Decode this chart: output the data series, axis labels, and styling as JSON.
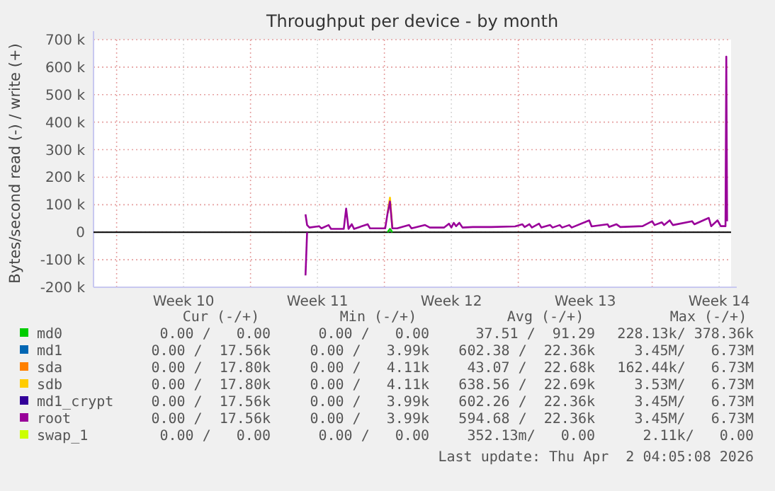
{
  "chart_data": {
    "type": "line",
    "title": "Throughput per device - by month",
    "ylabel": "Bytes/second read (-) / write (+)",
    "xlim": [
      "2026-02-28T01:00",
      "2026-04-02T09:00"
    ],
    "xticks": [
      {
        "value": "2026-03-01T06:00",
        "label": null
      },
      {
        "value": "2026-03-04T18:00",
        "label": "Week 10"
      },
      {
        "value": "2026-03-08T06:00",
        "label": null
      },
      {
        "value": "2026-03-11T18:00",
        "label": "Week 11"
      },
      {
        "value": "2026-03-15T06:00",
        "label": null
      },
      {
        "value": "2026-03-18T18:00",
        "label": "Week 12"
      },
      {
        "value": "2026-03-22T06:00",
        "label": null
      },
      {
        "value": "2026-03-25T18:00",
        "label": "Week 13"
      },
      {
        "value": "2026-03-29T06:00",
        "label": null
      },
      {
        "value": "2026-04-01T18:00",
        "label": "Week 14"
      }
    ],
    "ylim": [
      -200000,
      700000
    ],
    "yticks": [
      {
        "value": -200000,
        "label": "-200 k"
      },
      {
        "value": -100000,
        "label": "-100 k"
      },
      0,
      {
        "value": 100000,
        "label": "100 k"
      },
      {
        "value": 200000,
        "label": "200 k"
      },
      {
        "value": 300000,
        "label": "300 k"
      },
      {
        "value": 400000,
        "label": "400 k"
      },
      {
        "value": 500000,
        "label": "500 k"
      },
      {
        "value": 600000,
        "label": "600 k"
      },
      {
        "value": 700000,
        "label": "700 k"
      }
    ],
    "grid": true,
    "legend": "bottom",
    "ref_lines": [
      {
        "axis": "y",
        "value": 0,
        "color": "#000000"
      }
    ],
    "series": [
      {
        "name": "md0",
        "color": "#00cc00",
        "x": [
          "2026-03-15T10:00",
          "2026-03-15T13:00",
          "2026-03-15T16:00"
        ],
        "values": [
          0,
          12000,
          0
        ]
      },
      {
        "name": "md1",
        "color": "#0066b3"
      },
      {
        "name": "sda",
        "color": "#ff8000"
      },
      {
        "name": "sdb",
        "color": "#ffcc00",
        "x": [
          "2026-03-15T10:00",
          "2026-03-15T13:00",
          "2026-03-15T16:00"
        ],
        "values": [
          69000,
          126000,
          14000
        ]
      },
      {
        "name": "md1_crypt",
        "color": "#330099"
      },
      {
        "name": "root",
        "color": "#990099",
        "x": [
          "2026-03-11T03:00",
          "2026-03-11T05:00",
          "2026-03-11T08:00",
          "2026-03-11T20:00",
          "2026-03-11T23:00",
          "2026-03-12T08:00",
          "2026-03-12T11:00",
          "2026-03-13T03:00",
          "2026-03-13T06:00",
          "2026-03-13T09:00",
          "2026-03-13T13:00",
          "2026-03-13T16:00",
          "2026-03-14T09:00",
          "2026-03-14T12:00",
          "2026-03-15T07:00",
          "2026-03-15T10:00",
          "2026-03-15T13:00",
          "2026-03-15T16:00",
          "2026-03-15T22:00",
          "2026-03-16T13:00",
          "2026-03-16T16:00",
          "2026-03-17T09:00",
          "2026-03-17T15:00",
          "2026-03-18T09:00",
          "2026-03-18T15:00",
          "2026-03-18T18:00",
          "2026-03-18T21:00",
          "2026-03-19T00:00",
          "2026-03-19T04:00",
          "2026-03-19T08:00",
          "2026-03-19T21:00",
          "2026-03-20T20:00",
          "2026-03-22T02:00",
          "2026-03-22T11:00",
          "2026-03-22T14:00",
          "2026-03-22T20:00",
          "2026-03-22T23:00",
          "2026-03-23T08:00",
          "2026-03-23T11:00",
          "2026-03-23T22:00",
          "2026-03-24T01:00",
          "2026-03-24T10:00",
          "2026-03-24T13:00",
          "2026-03-24T22:00",
          "2026-03-25T01:00",
          "2026-03-25T23:00",
          "2026-03-26T02:00",
          "2026-03-26T22:00",
          "2026-03-27T00:00",
          "2026-03-27T09:00",
          "2026-03-27T14:00",
          "2026-03-28T18:00",
          "2026-03-29T06:00",
          "2026-03-29T09:00",
          "2026-03-29T18:00",
          "2026-03-29T21:00",
          "2026-03-30T04:00",
          "2026-03-30T08:00",
          "2026-03-31T08:00",
          "2026-03-31T11:00",
          "2026-04-01T05:00",
          "2026-04-01T08:00",
          "2026-04-01T16:00",
          "2026-04-01T20:00",
          "2026-04-02T02:00",
          "2026-04-02T03:00",
          "2026-04-02T04:00"
        ],
        "values": [
          65000,
          26000,
          17000,
          22000,
          14000,
          26000,
          12000,
          12000,
          86000,
          12000,
          29000,
          12000,
          29000,
          14000,
          14000,
          69000,
          112000,
          14000,
          14000,
          26000,
          14000,
          26000,
          17000,
          17000,
          31000,
          17000,
          34000,
          22000,
          34000,
          17000,
          19000,
          19000,
          21000,
          29000,
          19000,
          29000,
          17000,
          31000,
          17000,
          26000,
          17000,
          26000,
          17000,
          26000,
          17000,
          43000,
          21000,
          29000,
          19000,
          29000,
          19000,
          22000,
          40000,
          26000,
          36000,
          26000,
          43000,
          26000,
          40000,
          29000,
          52000,
          22000,
          43000,
          22000,
          22000,
          638000,
          40000
        ]
      },
      {
        "color": "#990099",
        "x": [
          "2026-03-11T03:00",
          "2026-03-11T05:00"
        ],
        "values": [
          -157000,
          0
        ]
      },
      {
        "name": "swap_1",
        "color": "#ccff00"
      }
    ],
    "annotations": [
      "Cur (-/+)",
      "Min (-/+)",
      "Avg (-/+)",
      "Max (-/+)",
      "0.00 /   0.00",
      "0.00 /   0.00",
      "37.51 /  91.29",
      "228.13k/ 378.36k",
      "0.00 /  17.56k",
      "0.00 /   3.99k",
      "602.38 /  22.36k",
      "3.45M/   6.73M",
      "0.00 /  17.80k",
      "0.00 /   4.11k",
      "43.07 /  22.68k",
      "162.44k/   6.73M",
      "0.00 /  17.80k",
      "0.00 /   4.11k",
      "638.56 /  22.69k",
      "3.53M/   6.73M",
      "0.00 /  17.56k",
      "0.00 /   3.99k",
      "602.26 /  22.36k",
      "3.45M/   6.73M",
      "0.00 /  17.56k",
      "0.00 /   3.99k",
      "594.68 /  22.36k",
      "3.45M/   6.73M",
      "0.00 /   0.00",
      "0.00 /   0.00",
      "352.13m/   0.00",
      "2.11k/   0.00",
      "Last update: Thu Apr  2 04:05:08 2026"
    ]
  }
}
